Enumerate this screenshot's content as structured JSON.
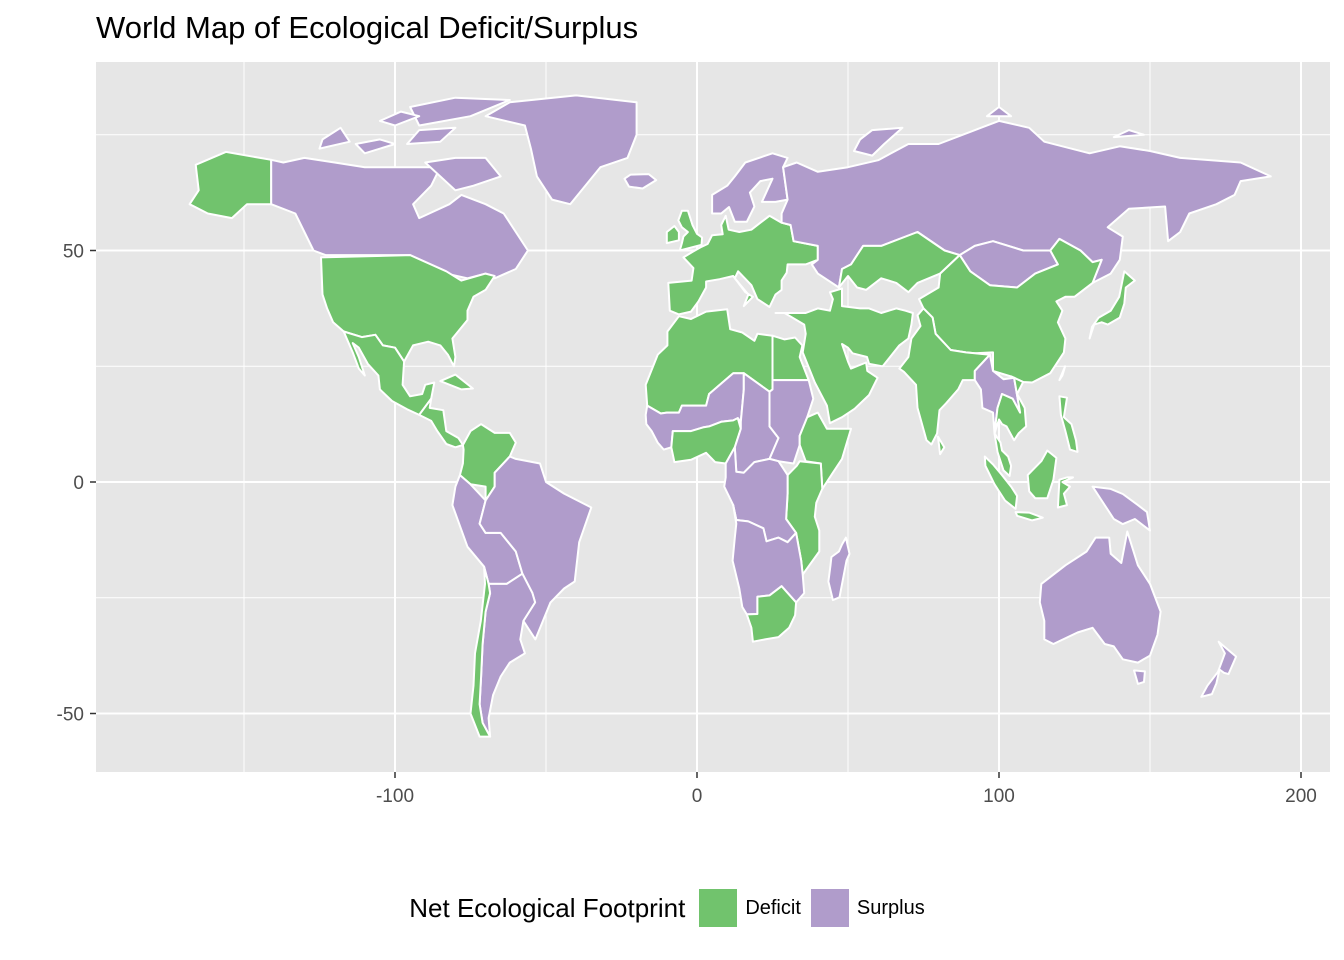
{
  "title": "World Map of Ecological Deficit/Surplus",
  "axes": {
    "x_ticks": [
      -100,
      0,
      100,
      200
    ],
    "y_ticks": [
      50,
      0,
      -50
    ],
    "x_range": [
      -194,
      210
    ],
    "y_range": [
      -62,
      96
    ]
  },
  "legend": {
    "title": "Net Ecological Footprint",
    "placement": "bottom",
    "items": [
      {
        "label": "Deficit",
        "color": "#71c36d"
      },
      {
        "label": "Surplus",
        "color": "#b09ccb"
      }
    ]
  },
  "colors": {
    "panel": "#e6e6e6",
    "grid": "#ffffff",
    "border": "#ffffff"
  },
  "map_data": {
    "regions": [
      {
        "name": "Alaska",
        "status": "Deficit"
      },
      {
        "name": "Canada",
        "status": "Surplus"
      },
      {
        "name": "Greenland",
        "status": "Surplus"
      },
      {
        "name": "United States",
        "status": "Deficit"
      },
      {
        "name": "Mexico",
        "status": "Deficit"
      },
      {
        "name": "Central America",
        "status": "Deficit"
      },
      {
        "name": "Colombia / Venezuela",
        "status": "Deficit"
      },
      {
        "name": "Brazil",
        "status": "Surplus"
      },
      {
        "name": "Peru / Bolivia",
        "status": "Surplus"
      },
      {
        "name": "Argentina",
        "status": "Surplus"
      },
      {
        "name": "Chile",
        "status": "Deficit"
      },
      {
        "name": "Western Europe",
        "status": "Deficit"
      },
      {
        "name": "Scandinavia",
        "status": "Surplus"
      },
      {
        "name": "Russia",
        "status": "Surplus"
      },
      {
        "name": "Kazakhstan",
        "status": "Deficit"
      },
      {
        "name": "Mongolia",
        "status": "Surplus"
      },
      {
        "name": "China",
        "status": "Deficit"
      },
      {
        "name": "Middle East",
        "status": "Deficit"
      },
      {
        "name": "India",
        "status": "Deficit"
      },
      {
        "name": "Southeast Asia",
        "status": "Deficit"
      },
      {
        "name": "Myanmar / Laos",
        "status": "Surplus"
      },
      {
        "name": "Indonesia",
        "status": "Deficit"
      },
      {
        "name": "Papua New Guinea",
        "status": "Surplus"
      },
      {
        "name": "Japan",
        "status": "Deficit"
      },
      {
        "name": "Australia",
        "status": "Surplus"
      },
      {
        "name": "New Zealand",
        "status": "Surplus"
      },
      {
        "name": "North Africa",
        "status": "Deficit"
      },
      {
        "name": "Egypt",
        "status": "Deficit"
      },
      {
        "name": "West Africa",
        "status": "Surplus"
      },
      {
        "name": "Nigeria region",
        "status": "Deficit"
      },
      {
        "name": "Chad region",
        "status": "Surplus"
      },
      {
        "name": "Ethiopia",
        "status": "Deficit"
      },
      {
        "name": "East Africa",
        "status": "Deficit"
      },
      {
        "name": "Central Africa",
        "status": "Surplus"
      },
      {
        "name": "Southern Africa",
        "status": "Surplus"
      },
      {
        "name": "South Africa",
        "status": "Deficit"
      },
      {
        "name": "Madagascar",
        "status": "Surplus"
      }
    ]
  }
}
